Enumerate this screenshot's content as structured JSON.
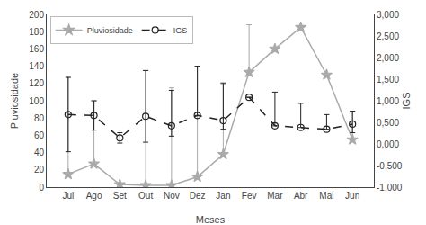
{
  "chart_data": {
    "type": "line",
    "categories": [
      "Jul",
      "Ago",
      "Set",
      "Out",
      "Nov",
      "Dez",
      "Jan",
      "Fev",
      "Mar",
      "Abr",
      "Mai",
      "Jun"
    ],
    "x_label": "Meses",
    "y_label": "Pluviosidade",
    "y2_label": "IGS",
    "series": [
      {
        "name": "Pluviosidade",
        "color": "#aaaaaa",
        "marker": "star",
        "line_style": "solid",
        "values": [
          15,
          27,
          3,
          2,
          2,
          12,
          38,
          133,
          160,
          185,
          130,
          55
        ],
        "yerr_upper": [
          113,
          73,
          0,
          133,
          113,
          128,
          83,
          55,
          0,
          0,
          0,
          33
        ],
        "yerr_lower": [
          0,
          0,
          0,
          0,
          0,
          0,
          0,
          0,
          0,
          0,
          0,
          0
        ]
      },
      {
        "name": "IGS",
        "axis": "y2",
        "color": "#222222",
        "marker": "circle-open",
        "line_style": "dashed",
        "values": [
          680,
          660,
          140,
          640,
          420,
          660,
          540,
          1080,
          420,
          380,
          340,
          460
        ],
        "yerr_upper": [
          860,
          340,
          120,
          1060,
          820,
          1140,
          860,
          0,
          780,
          560,
          340,
          300
        ],
        "yerr_lower": [
          860,
          340,
          120,
          600,
          240,
          0,
          200,
          0,
          0,
          0,
          0,
          200
        ]
      }
    ],
    "ylim": [
      0,
      200
    ],
    "yticks": [
      0,
      20,
      40,
      60,
      80,
      100,
      120,
      140,
      160,
      180,
      200
    ],
    "y2lim": [
      -1000,
      3000
    ],
    "y2ticks": [
      {
        "value": -1000,
        "label": "-1,000"
      },
      {
        "value": -500,
        "label": "-0,500"
      },
      {
        "value": 0,
        "label": "0,000"
      },
      {
        "value": 500,
        "label": "0,500"
      },
      {
        "value": 1000,
        "label": "1,000"
      },
      {
        "value": 1500,
        "label": "1,500"
      },
      {
        "value": 2000,
        "label": "2,000"
      },
      {
        "value": 2500,
        "label": "2,500"
      },
      {
        "value": 3000,
        "label": "3,000"
      }
    ],
    "grid": false,
    "legend": "upper left"
  }
}
